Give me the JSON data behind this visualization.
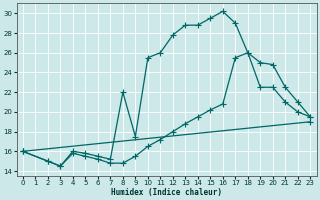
{
  "xlabel": "Humidex (Indice chaleur)",
  "bg_color": "#cce8e8",
  "grid_color": "#ffffff",
  "line_color": "#006666",
  "xlim": [
    -0.5,
    23.5
  ],
  "ylim": [
    13.5,
    31
  ],
  "xticks": [
    0,
    1,
    2,
    3,
    4,
    5,
    6,
    7,
    8,
    9,
    10,
    11,
    12,
    13,
    14,
    15,
    16,
    17,
    18,
    19,
    20,
    21,
    22,
    23
  ],
  "yticks": [
    14,
    16,
    18,
    20,
    22,
    24,
    26,
    28,
    30
  ],
  "line1_x": [
    0,
    2,
    3,
    4,
    5,
    6,
    7,
    8,
    9,
    10,
    11,
    12,
    13,
    14,
    15,
    16,
    17,
    18,
    19,
    20,
    21,
    22,
    23
  ],
  "line1_y": [
    16,
    15,
    14.5,
    16,
    15.8,
    15.5,
    15.2,
    22,
    17.5,
    25.5,
    26,
    27.8,
    28.8,
    28.8,
    29.5,
    30.2,
    29,
    26,
    25,
    24.8,
    22.5,
    21,
    19.5
  ],
  "line2_x": [
    0,
    2,
    3,
    4,
    5,
    6,
    7,
    8,
    9,
    10,
    11,
    12,
    13,
    14,
    15,
    16,
    17,
    18,
    19,
    20,
    21,
    22,
    23
  ],
  "line2_y": [
    16,
    15,
    14.5,
    15.8,
    15.5,
    15.2,
    14.8,
    14.8,
    15.5,
    16.5,
    17.2,
    18.0,
    18.8,
    19.5,
    20.2,
    20.8,
    25.5,
    26.0,
    22.5,
    22.5,
    21.0,
    20.0,
    19.5
  ],
  "line3_x": [
    0,
    23
  ],
  "line3_y": [
    16,
    19
  ]
}
